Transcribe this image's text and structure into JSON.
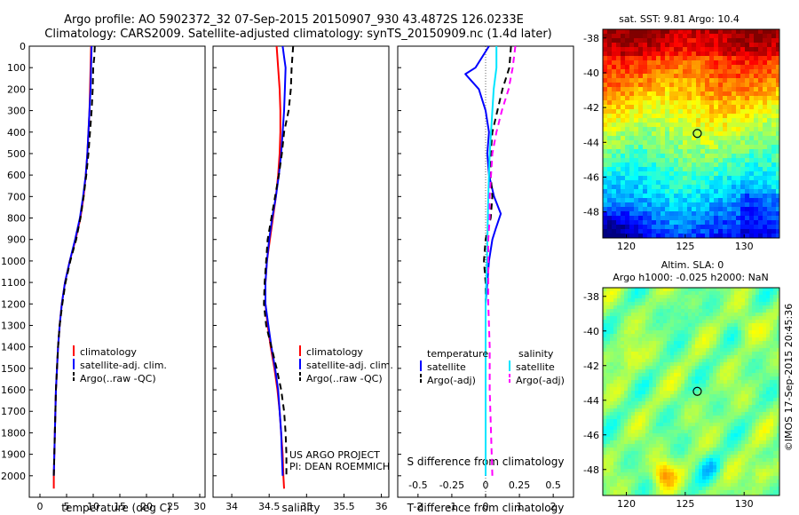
{
  "figure": {
    "title_line1": "Argo profile: AO 5902372_32 07-Sep-2015 20150907_930 43.4872S 126.0233E",
    "title_line2": "Climatology: CARS2009. Satellite-adjusted climatology: synTS_20150909.nc (1.4d later)",
    "credit_line1": "US ARGO PROJECT",
    "credit_line2": "PI: DEAN ROEMMICH",
    "side_stamp": "©IMOS 17-Sep-2015 20:45:36"
  },
  "colors": {
    "climatology": "#ff0000",
    "satellite": "#0000ff",
    "argo": "#000000",
    "salinity_satellite": "#00e5ff",
    "salinity_argo": "#ff00ff"
  },
  "chart_data": [
    {
      "type": "line",
      "panel": "temperature",
      "xlabel": "temperature (deg C)",
      "xlim": [
        -2,
        31
      ],
      "ylim": [
        2100,
        0
      ],
      "y_reversed": true,
      "xticks": [
        "0",
        "5",
        "10",
        "15",
        "20",
        "25",
        "30"
      ],
      "yticks": [
        "0",
        "100",
        "200",
        "300",
        "400",
        "500",
        "600",
        "700",
        "800",
        "900",
        "1000",
        "1100",
        "1200",
        "1300",
        "1400",
        "1500",
        "1600",
        "1700",
        "1800",
        "1900",
        "2000"
      ],
      "legend": [
        "climatology",
        "satellite-adj. clim.",
        "Argo(..raw -QC)"
      ],
      "series": [
        {
          "name": "climatology",
          "color": "#ff0000",
          "style": "solid",
          "points": [
            [
              9.6,
              0
            ],
            [
              9.5,
              100
            ],
            [
              9.4,
              200
            ],
            [
              9.3,
              300
            ],
            [
              9.1,
              400
            ],
            [
              8.9,
              500
            ],
            [
              8.6,
              600
            ],
            [
              8.2,
              700
            ],
            [
              7.6,
              800
            ],
            [
              6.7,
              900
            ],
            [
              5.6,
              1000
            ],
            [
              4.7,
              1100
            ],
            [
              4.1,
              1200
            ],
            [
              3.7,
              1300
            ],
            [
              3.4,
              1400
            ],
            [
              3.2,
              1500
            ],
            [
              3.0,
              1600
            ],
            [
              2.9,
              1700
            ],
            [
              2.8,
              1800
            ],
            [
              2.7,
              1900
            ],
            [
              2.6,
              2000
            ],
            [
              2.6,
              2060
            ]
          ]
        },
        {
          "name": "satellite-adj. clim.",
          "color": "#0000ff",
          "style": "solid",
          "points": [
            [
              9.7,
              0
            ],
            [
              9.6,
              100
            ],
            [
              9.5,
              200
            ],
            [
              9.3,
              300
            ],
            [
              9.1,
              400
            ],
            [
              8.9,
              500
            ],
            [
              8.6,
              600
            ],
            [
              8.1,
              700
            ],
            [
              7.5,
              800
            ],
            [
              6.6,
              900
            ],
            [
              5.6,
              1000
            ],
            [
              4.7,
              1100
            ],
            [
              4.1,
              1200
            ],
            [
              3.7,
              1300
            ],
            [
              3.4,
              1400
            ],
            [
              3.2,
              1500
            ],
            [
              3.0,
              1600
            ],
            [
              2.9,
              1700
            ],
            [
              2.8,
              1800
            ],
            [
              2.7,
              1900
            ],
            [
              2.6,
              2000
            ]
          ]
        },
        {
          "name": "Argo(..raw -QC)",
          "color": "#000000",
          "style": "dashed",
          "points": [
            [
              10.3,
              0
            ],
            [
              10.2,
              50
            ],
            [
              10.0,
              100
            ],
            [
              9.9,
              200
            ],
            [
              9.7,
              300
            ],
            [
              9.4,
              400
            ],
            [
              9.1,
              500
            ],
            [
              8.7,
              600
            ],
            [
              8.2,
              700
            ],
            [
              7.6,
              800
            ],
            [
              6.8,
              900
            ],
            [
              5.7,
              1000
            ],
            [
              4.8,
              1100
            ],
            [
              4.2,
              1200
            ],
            [
              3.7,
              1300
            ],
            [
              3.4,
              1400
            ],
            [
              3.2,
              1500
            ],
            [
              3.0,
              1600
            ],
            [
              2.9,
              1700
            ],
            [
              2.8,
              1800
            ],
            [
              2.7,
              1900
            ],
            [
              2.6,
              2000
            ]
          ]
        }
      ]
    },
    {
      "type": "line",
      "panel": "salinity",
      "xlabel": "salinity",
      "xlim": [
        33.75,
        36.1
      ],
      "ylim": [
        2100,
        0
      ],
      "y_reversed": true,
      "xticks": [
        "34",
        "34.5",
        "35",
        "35.5",
        "36"
      ],
      "legend": [
        "climatology",
        "satellite-adj. clim.",
        "Argo(..raw -QC)"
      ],
      "series": [
        {
          "name": "climatology",
          "color": "#ff0000",
          "style": "solid",
          "points": [
            [
              34.6,
              0
            ],
            [
              34.62,
              100
            ],
            [
              34.64,
              200
            ],
            [
              34.65,
              300
            ],
            [
              34.65,
              400
            ],
            [
              34.64,
              500
            ],
            [
              34.62,
              600
            ],
            [
              34.59,
              700
            ],
            [
              34.55,
              800
            ],
            [
              34.51,
              900
            ],
            [
              34.47,
              1000
            ],
            [
              34.45,
              1100
            ],
            [
              34.45,
              1200
            ],
            [
              34.48,
              1300
            ],
            [
              34.52,
              1400
            ],
            [
              34.57,
              1500
            ],
            [
              34.61,
              1600
            ],
            [
              34.64,
              1700
            ],
            [
              34.66,
              1800
            ],
            [
              34.68,
              1900
            ],
            [
              34.69,
              2000
            ],
            [
              34.7,
              2060
            ]
          ]
        },
        {
          "name": "satellite-adj. clim.",
          "color": "#0000ff",
          "style": "solid",
          "points": [
            [
              34.68,
              0
            ],
            [
              34.7,
              50
            ],
            [
              34.72,
              100
            ],
            [
              34.71,
              200
            ],
            [
              34.7,
              300
            ],
            [
              34.68,
              400
            ],
            [
              34.66,
              500
            ],
            [
              34.63,
              600
            ],
            [
              34.59,
              700
            ],
            [
              34.54,
              800
            ],
            [
              34.5,
              900
            ],
            [
              34.47,
              1000
            ],
            [
              34.45,
              1100
            ],
            [
              34.45,
              1200
            ],
            [
              34.49,
              1300
            ],
            [
              34.53,
              1400
            ],
            [
              34.58,
              1500
            ],
            [
              34.62,
              1600
            ],
            [
              34.64,
              1700
            ],
            [
              34.66,
              1800
            ],
            [
              34.67,
              1900
            ],
            [
              34.68,
              2000
            ]
          ]
        },
        {
          "name": "Argo(..raw -QC)",
          "color": "#000000",
          "style": "dashed",
          "points": [
            [
              34.82,
              0
            ],
            [
              34.8,
              100
            ],
            [
              34.79,
              200
            ],
            [
              34.76,
              300
            ],
            [
              34.7,
              400
            ],
            [
              34.67,
              500
            ],
            [
              34.63,
              600
            ],
            [
              34.58,
              700
            ],
            [
              34.53,
              800
            ],
            [
              34.48,
              900
            ],
            [
              34.46,
              1000
            ],
            [
              34.44,
              1100
            ],
            [
              34.43,
              1200
            ],
            [
              34.46,
              1300
            ],
            [
              34.53,
              1400
            ],
            [
              34.6,
              1500
            ],
            [
              34.66,
              1600
            ],
            [
              34.7,
              1700
            ],
            [
              34.72,
              1800
            ],
            [
              34.73,
              1900
            ],
            [
              34.73,
              2000
            ]
          ]
        }
      ]
    },
    {
      "type": "line",
      "panel": "difference",
      "xlabel": "T difference from climatology",
      "xlabel_top": "S difference from climatology",
      "xlim": [
        -2.6,
        2.6
      ],
      "ylim": [
        2100,
        0
      ],
      "y_reversed": true,
      "xticks": [
        "-2",
        "-1",
        "0",
        "1",
        "2"
      ],
      "xticks_top": [
        "-0.5",
        "-0.25",
        "0",
        "0.25",
        "0.5"
      ],
      "legend_temperature_title": "temperature",
      "legend_salinity_title": "salinity",
      "legend_temperature": [
        "satellite",
        "Argo(-adj)"
      ],
      "legend_salinity": [
        "satellite",
        "Argo(-adj)"
      ],
      "series": [
        {
          "name": "satellite",
          "group": "temperature",
          "color": "#0000ff",
          "style": "solid",
          "points": [
            [
              0.1,
              0
            ],
            [
              -0.3,
              100
            ],
            [
              -0.6,
              130
            ],
            [
              -0.2,
              200
            ],
            [
              0.0,
              300
            ],
            [
              0.1,
              400
            ],
            [
              0.05,
              500
            ],
            [
              0.1,
              600
            ],
            [
              0.25,
              700
            ],
            [
              0.45,
              780
            ],
            [
              0.3,
              850
            ],
            [
              0.2,
              900
            ],
            [
              0.1,
              1000
            ],
            [
              0.05,
              1100
            ],
            [
              0.0,
              1200
            ],
            [
              0.0,
              1400
            ],
            [
              0.0,
              1600
            ],
            [
              0.0,
              1800
            ],
            [
              0.0,
              2000
            ]
          ]
        },
        {
          "name": "Argo(-adj)",
          "group": "temperature",
          "color": "#000000",
          "style": "dashed",
          "points": [
            [
              0.75,
              0
            ],
            [
              0.7,
              100
            ],
            [
              0.5,
              200
            ],
            [
              0.35,
              300
            ],
            [
              0.2,
              400
            ],
            [
              0.15,
              500
            ],
            [
              0.15,
              600
            ],
            [
              0.2,
              700
            ],
            [
              0.15,
              800
            ],
            [
              0.0,
              900
            ],
            [
              -0.05,
              1000
            ],
            [
              0.0,
              1100
            ],
            [
              0.0,
              1200
            ],
            [
              0.0,
              1400
            ],
            [
              0.0,
              1600
            ],
            [
              0.0,
              1800
            ],
            [
              0.0,
              2000
            ]
          ]
        },
        {
          "name": "satellite",
          "group": "salinity",
          "color": "#00e5ff",
          "style": "solid",
          "points": [
            [
              0.08,
              0
            ],
            [
              0.08,
              100
            ],
            [
              0.06,
              200
            ],
            [
              0.05,
              300
            ],
            [
              0.04,
              400
            ],
            [
              0.03,
              500
            ],
            [
              0.02,
              700
            ],
            [
              0.01,
              1000
            ],
            [
              0.0,
              1200
            ],
            [
              0.0,
              1500
            ],
            [
              0.0,
              1800
            ],
            [
              0.0,
              2000
            ]
          ]
        },
        {
          "name": "Argo(-adj)",
          "group": "salinity",
          "color": "#ff00ff",
          "style": "dashed",
          "points": [
            [
              0.22,
              0
            ],
            [
              0.2,
              100
            ],
            [
              0.17,
              200
            ],
            [
              0.12,
              300
            ],
            [
              0.08,
              400
            ],
            [
              0.05,
              500
            ],
            [
              0.04,
              600
            ],
            [
              0.03,
              700
            ],
            [
              0.03,
              800
            ],
            [
              0.02,
              900
            ],
            [
              0.02,
              1000
            ],
            [
              0.02,
              1200
            ],
            [
              0.03,
              1400
            ],
            [
              0.03,
              1600
            ],
            [
              0.04,
              1800
            ],
            [
              0.05,
              2000
            ]
          ]
        }
      ]
    },
    {
      "type": "heatmap",
      "panel": "sst-map",
      "title": "sat. SST: 9.81  Argo: 10.4",
      "xlim": [
        118,
        133
      ],
      "ylim": [
        -49.5,
        -37.5
      ],
      "xticks": [
        "120",
        "125",
        "130"
      ],
      "yticks": [
        "-38",
        "-40",
        "-42",
        "-44",
        "-46",
        "-48"
      ],
      "marker": {
        "lon": 126.0233,
        "lat": -43.4872
      }
    },
    {
      "type": "heatmap",
      "panel": "sla-map",
      "title_line1": "Altim. SLA: 0",
      "title_line2": "Argo h1000: -0.025  h2000: NaN",
      "xlim": [
        118,
        133
      ],
      "ylim": [
        -49.5,
        -37.5
      ],
      "xticks": [
        "120",
        "125",
        "130"
      ],
      "yticks": [
        "-38",
        "-40",
        "-42",
        "-44",
        "-46",
        "-48"
      ],
      "marker": {
        "lon": 126.0233,
        "lat": -43.4872
      }
    }
  ]
}
